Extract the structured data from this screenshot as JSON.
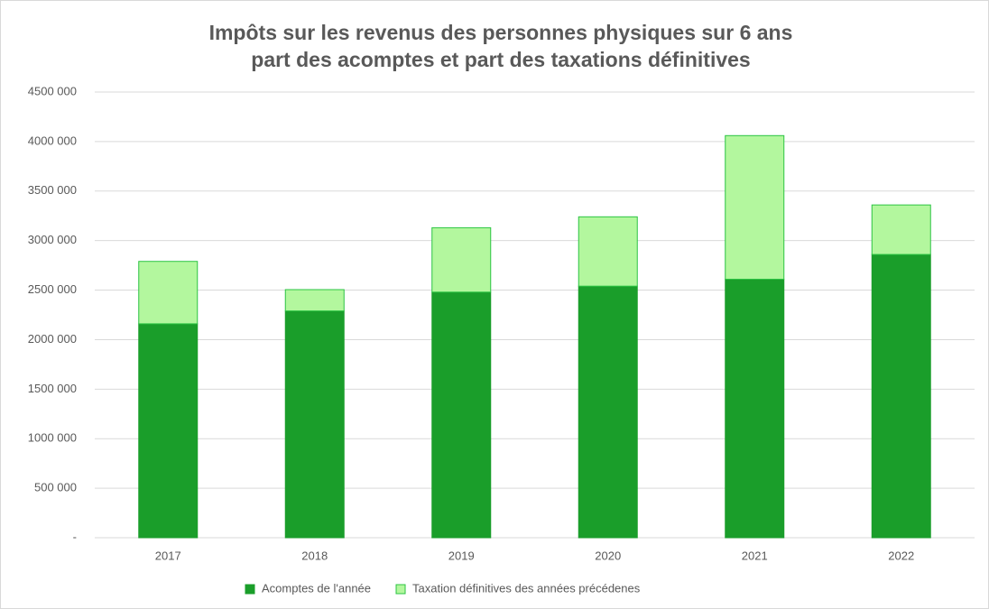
{
  "chart_data": {
    "type": "stacked_bar",
    "title": [
      "Impôts sur les revenus des personnes physiques sur 6 ans",
      "part des acomptes et part des taxations définitives"
    ],
    "categories": [
      "2017",
      "2018",
      "2019",
      "2020",
      "2021",
      "2022"
    ],
    "series": [
      {
        "name": "Acomptes de l'année",
        "color": "#1a9e2a",
        "stroke": "#1a9e2a",
        "values": [
          2160000,
          2290000,
          2480000,
          2540000,
          2610000,
          2860000
        ]
      },
      {
        "name": "Taxation définitives des années précédenes",
        "color": "#b3f79e",
        "stroke": "#2cc443",
        "values": [
          630000,
          215000,
          650000,
          700000,
          1450000,
          500000
        ]
      }
    ],
    "ylim": [
      0,
      4500000
    ],
    "yticks": [
      {
        "value": 0,
        "label": "-"
      },
      {
        "value": 500000,
        "label": "500 000"
      },
      {
        "value": 1000000,
        "label": "1000 000"
      },
      {
        "value": 1500000,
        "label": "1500 000"
      },
      {
        "value": 2000000,
        "label": "2000 000"
      },
      {
        "value": 2500000,
        "label": "2500 000"
      },
      {
        "value": 3000000,
        "label": "3000 000"
      },
      {
        "value": 3500000,
        "label": "3500 000"
      },
      {
        "value": 4000000,
        "label": "4000 000"
      },
      {
        "value": 4500000,
        "label": "4500 000"
      }
    ],
    "grid": true,
    "legend": "bottom"
  }
}
